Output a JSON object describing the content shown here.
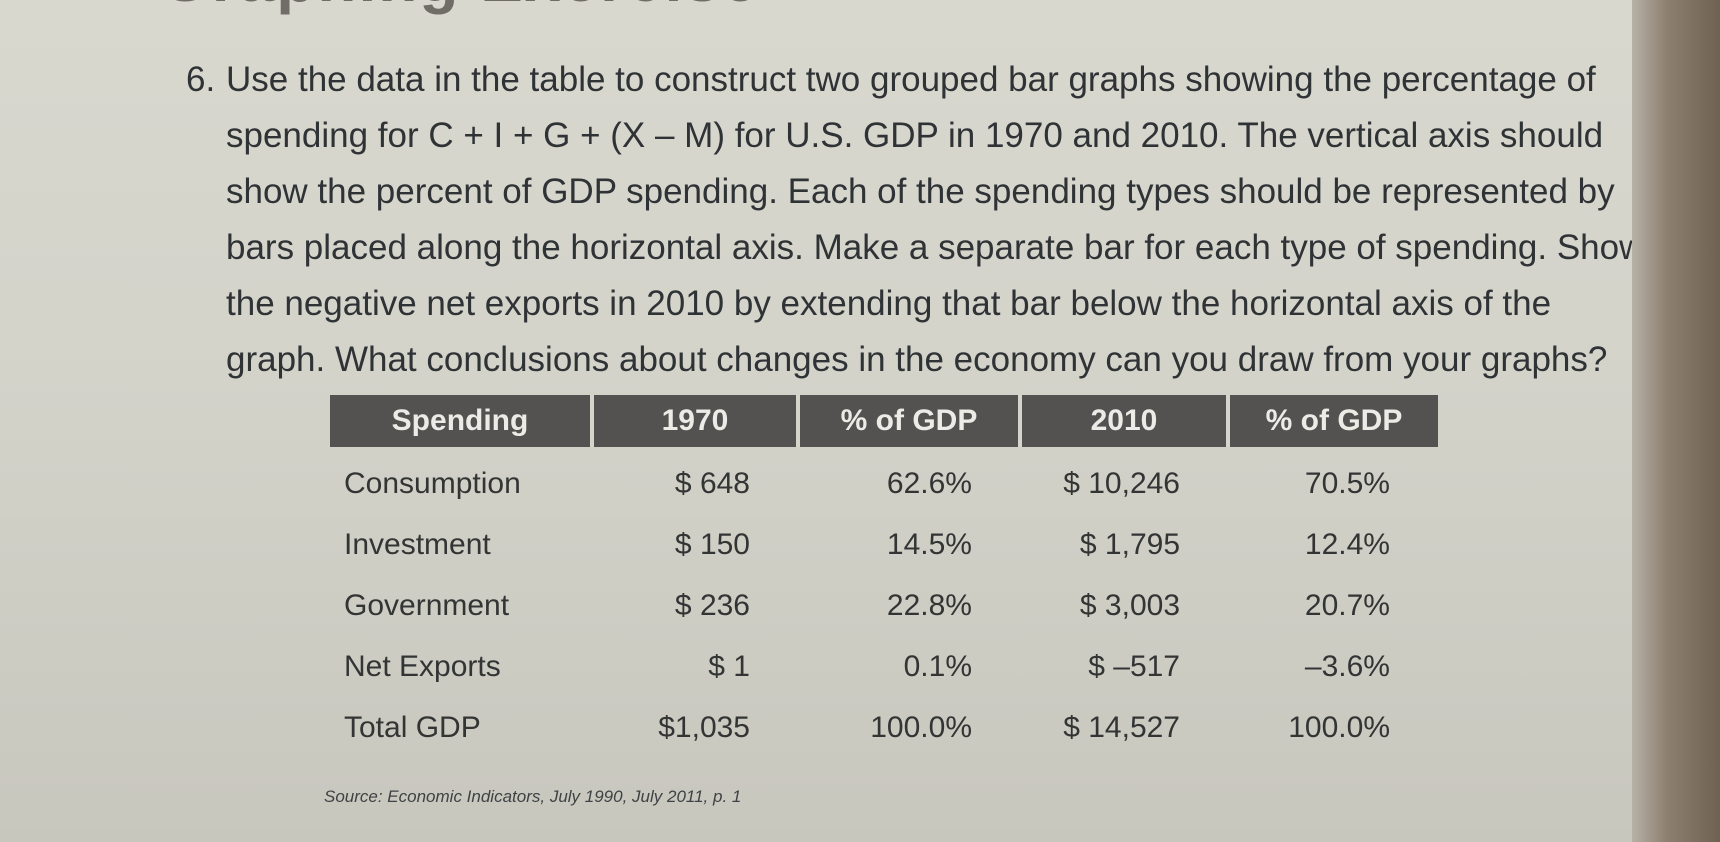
{
  "page": {
    "heading": "Graphing Exercise",
    "question_number": "6.",
    "question_lines": [
      "Use the data in the table to construct two grouped bar graphs showing the percentage of",
      "spending for C + I + G + (X – M) for U.S. GDP in 1970 and 2010. The vertical axis should",
      "show the percent of GDP spending. Each of the spending types should be represented by",
      "bars placed along the horizontal axis. Make a separate bar for each type of spending. Show",
      "the negative net exports in 2010 by extending that bar below the horizontal axis of the",
      "graph. What conclusions about changes in the economy can you draw from your graphs?"
    ],
    "source": "Source: Economic Indicators, July 1990, July 2011, p. 1"
  },
  "table": {
    "headers": [
      "Spending",
      "1970",
      "% of GDP",
      "2010",
      "% of GDP"
    ],
    "rows": [
      [
        "Consumption",
        "$ 648",
        "62.6%",
        "$ 10,246",
        "70.5%"
      ],
      [
        "Investment",
        "$ 150",
        "14.5%",
        "$ 1,795",
        "12.4%"
      ],
      [
        "Government",
        "$ 236",
        "22.8%",
        "$ 3,003",
        "20.7%"
      ],
      [
        "Net Exports",
        "$ 1",
        "0.1%",
        "$ –517",
        "–3.6%"
      ],
      [
        "Total GDP",
        "$1,035",
        "100.0%",
        "$ 14,527",
        "100.0%"
      ]
    ]
  },
  "colors": {
    "paper": "#d6d5cc",
    "header_fill": "#545250",
    "text": "#2f3336"
  }
}
